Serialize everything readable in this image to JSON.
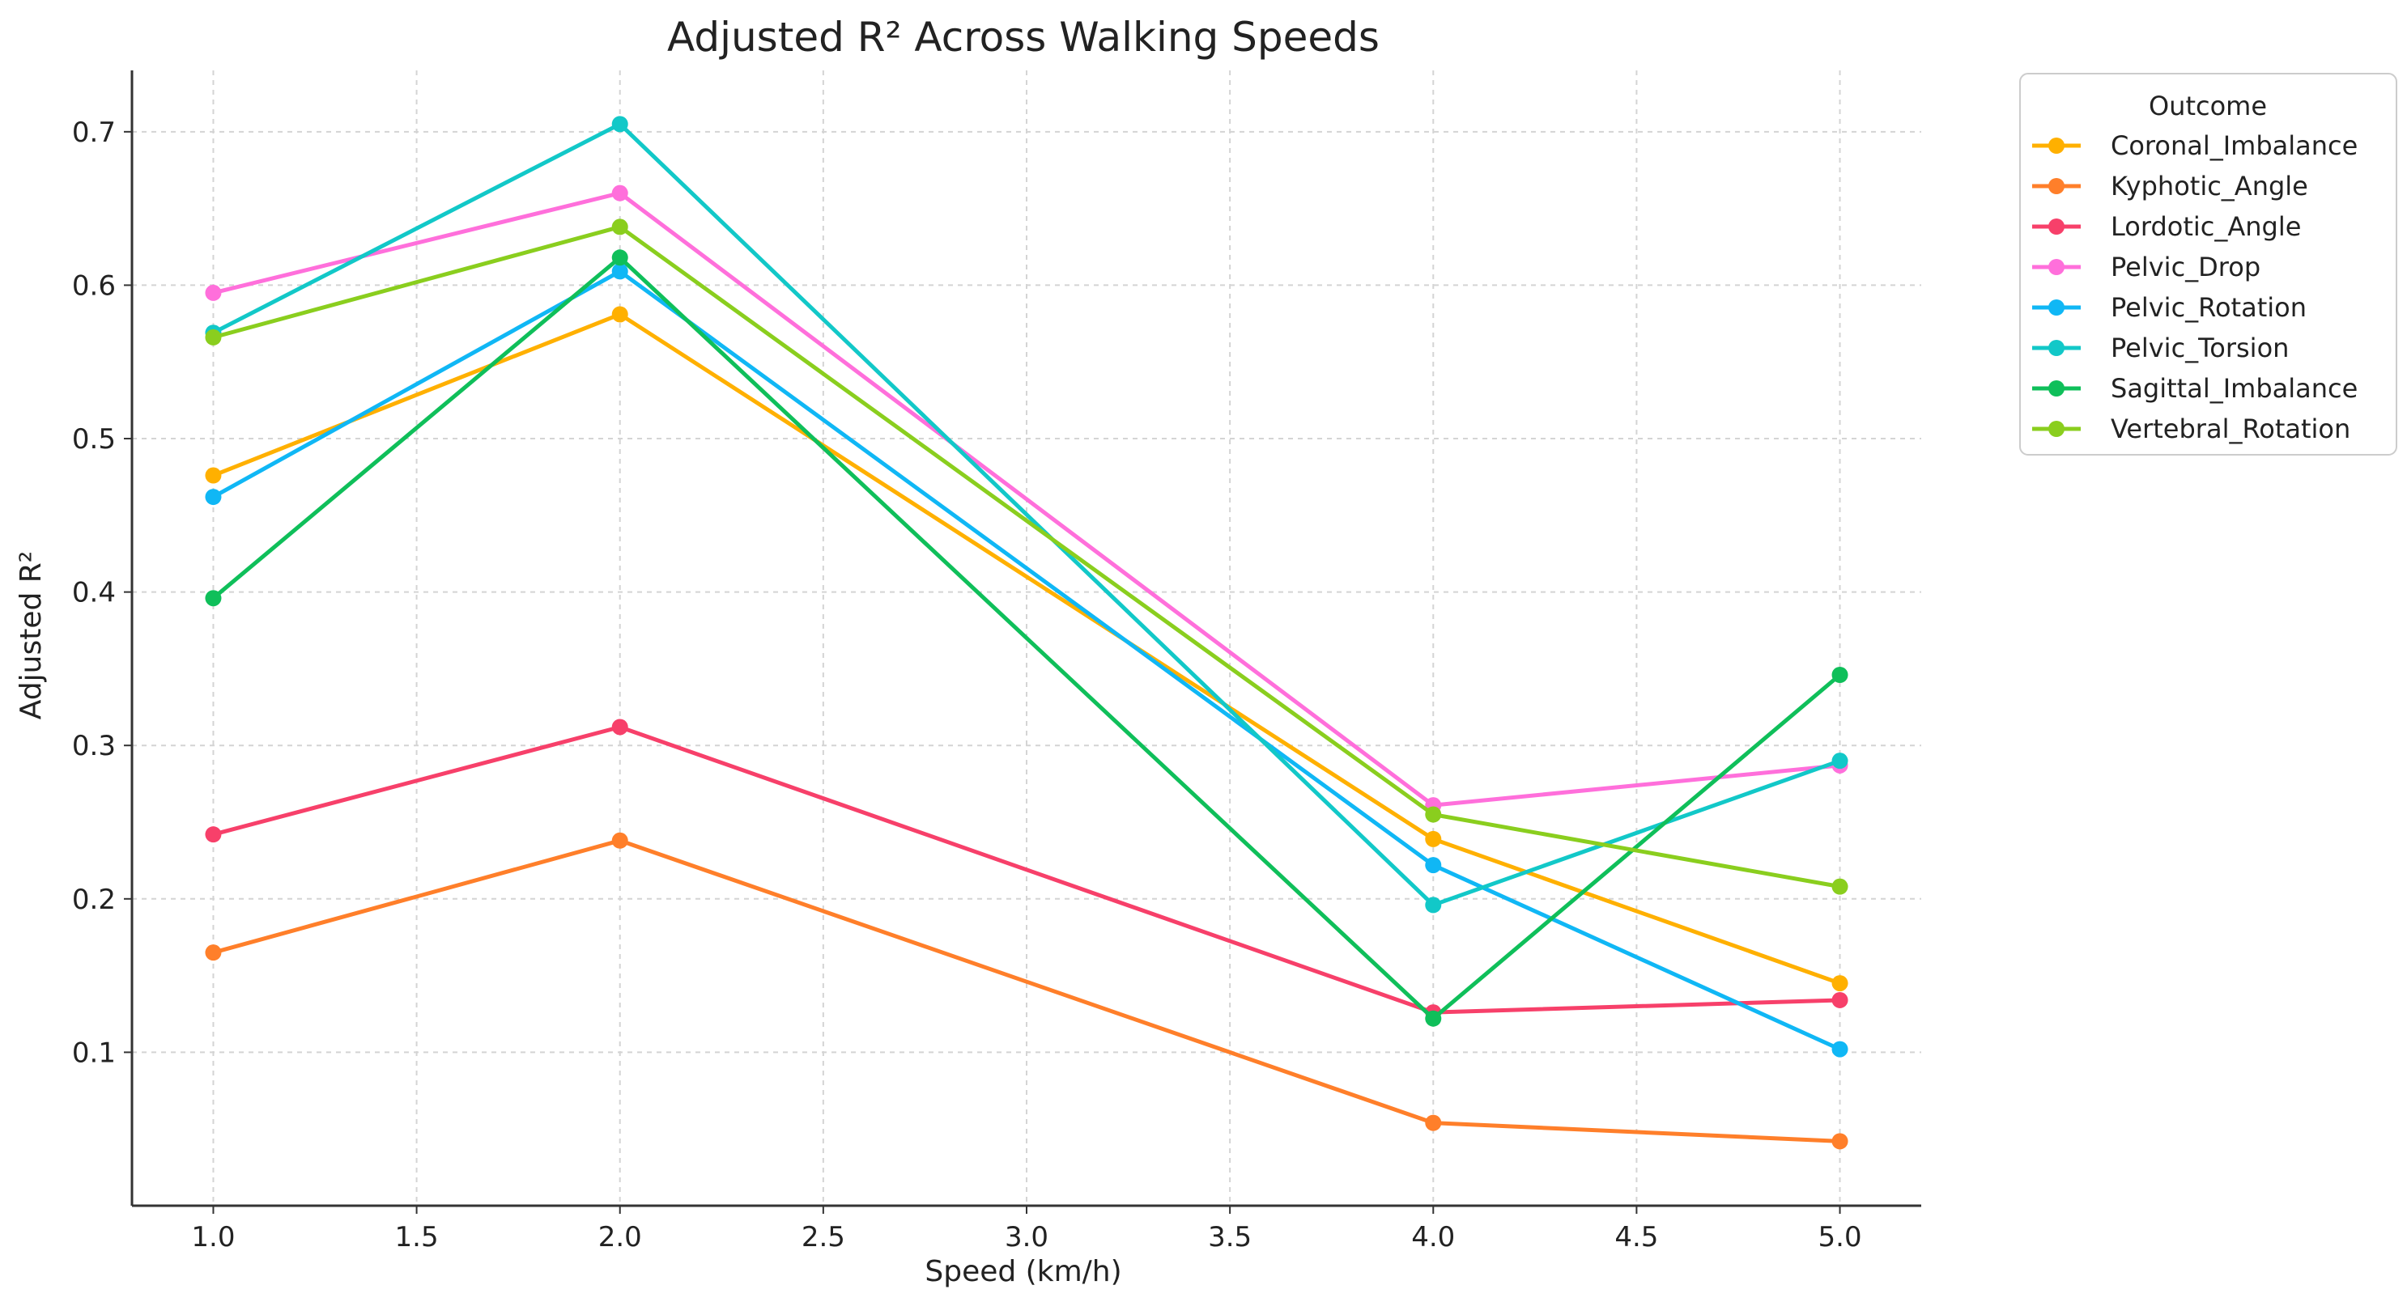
{
  "chart_data": {
    "type": "line",
    "title": "Adjusted R² Across Walking Speeds",
    "xlabel": "Speed (km/h)",
    "ylabel": "Adjusted R²",
    "xlim": [
      0.8,
      5.2
    ],
    "ylim": [
      0.0,
      0.74
    ],
    "xticks": [
      1.0,
      1.5,
      2.0,
      2.5,
      3.0,
      3.5,
      4.0,
      4.5,
      5.0
    ],
    "xtick_labels": [
      "1.0",
      "1.5",
      "2.0",
      "2.5",
      "3.0",
      "3.5",
      "4.0",
      "4.5",
      "5.0"
    ],
    "yticks": [
      0.1,
      0.2,
      0.3,
      0.4,
      0.5,
      0.6,
      0.7
    ],
    "ytick_labels": [
      "0.1",
      "0.2",
      "0.3",
      "0.4",
      "0.5",
      "0.6",
      "0.7"
    ],
    "grid": true,
    "legend": {
      "title": "Outcome",
      "placement": "outside-top-right"
    },
    "x": [
      1.0,
      2.0,
      4.0,
      5.0
    ],
    "series": [
      {
        "name": "Coronal_Imbalance",
        "color": "#FFB000",
        "values": [
          0.476,
          0.581,
          0.239,
          0.145
        ]
      },
      {
        "name": "Kyphotic_Angle",
        "color": "#FF7F2A",
        "values": [
          0.165,
          0.238,
          0.054,
          0.042
        ]
      },
      {
        "name": "Lordotic_Angle",
        "color": "#F7406A",
        "values": [
          0.242,
          0.312,
          0.126,
          0.134
        ]
      },
      {
        "name": "Pelvic_Drop",
        "color": "#FF6FDB",
        "values": [
          0.595,
          0.66,
          0.261,
          0.287
        ]
      },
      {
        "name": "Pelvic_Rotation",
        "color": "#10B7F5",
        "values": [
          0.462,
          0.609,
          0.222,
          0.102
        ]
      },
      {
        "name": "Pelvic_Torsion",
        "color": "#12C8C8",
        "values": [
          0.569,
          0.705,
          0.196,
          0.29
        ]
      },
      {
        "name": "Sagittal_Imbalance",
        "color": "#0FBF5A",
        "values": [
          0.396,
          0.618,
          0.122,
          0.346
        ]
      },
      {
        "name": "Vertebral_Rotation",
        "color": "#8ACE1E",
        "values": [
          0.566,
          0.638,
          0.255,
          0.208
        ]
      }
    ]
  }
}
